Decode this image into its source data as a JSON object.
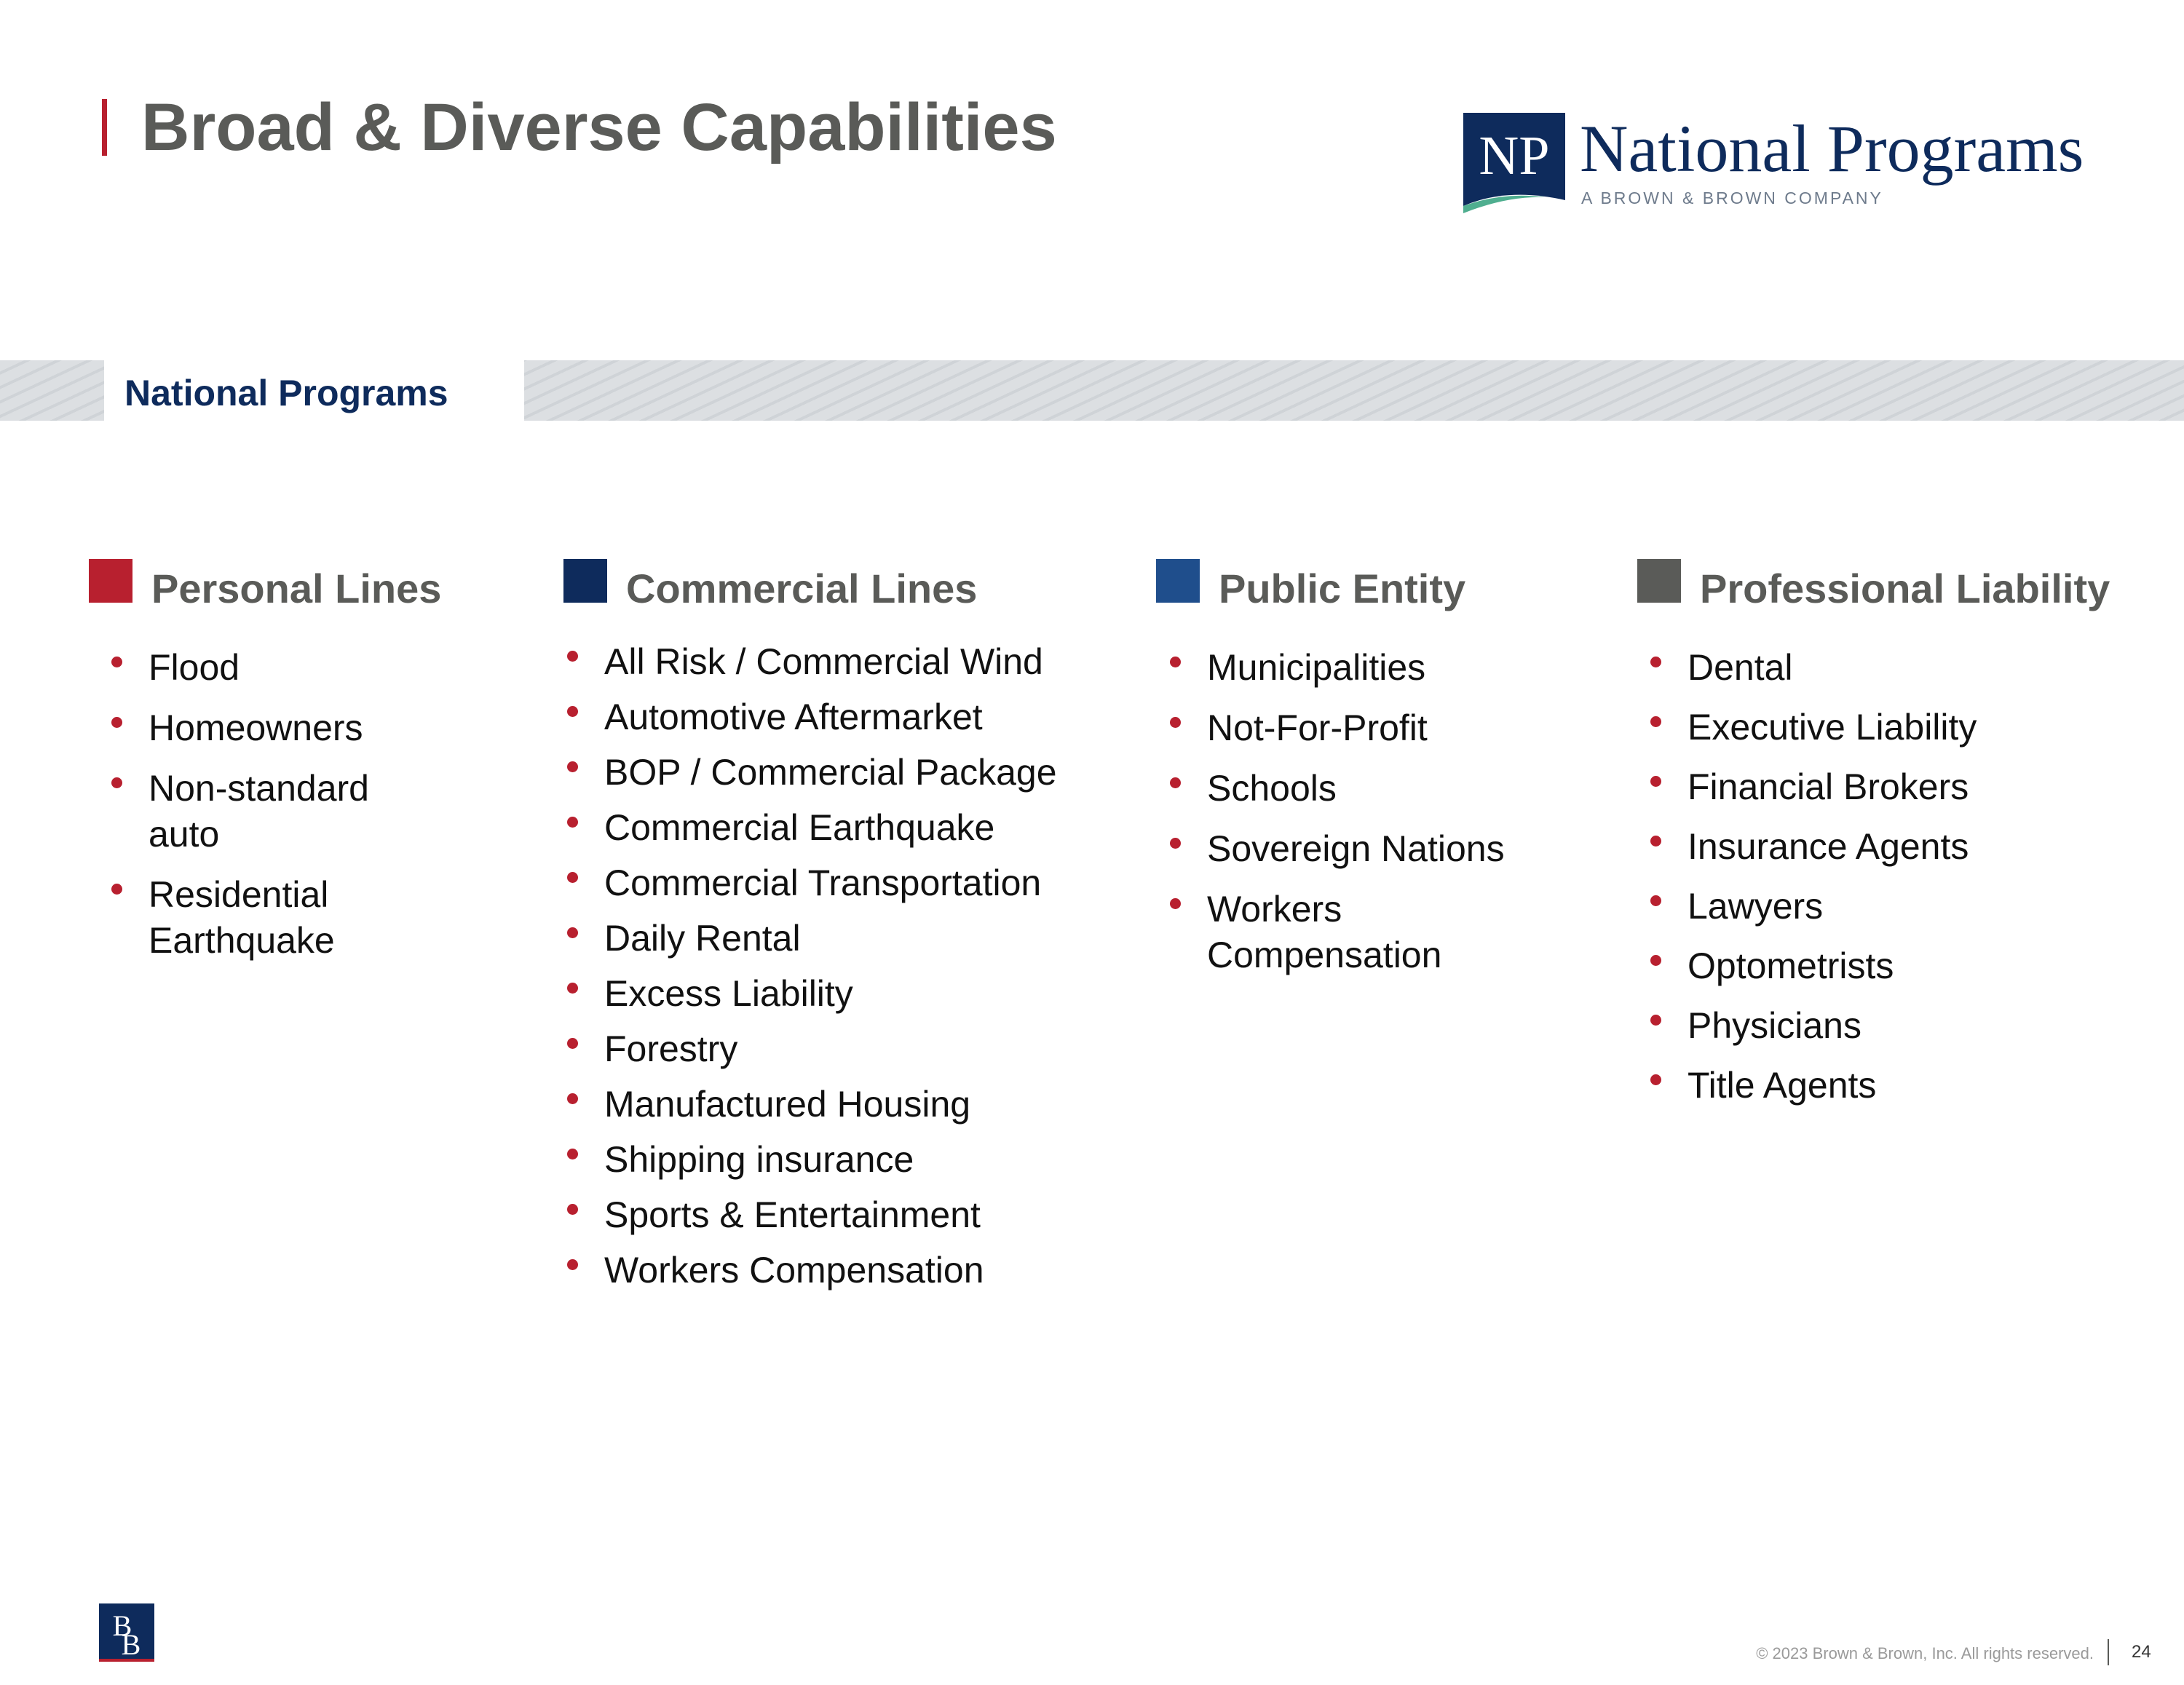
{
  "header": {
    "title": "Broad & Diverse Capabilities"
  },
  "logo": {
    "mark_text": "NP",
    "name": "National Programs",
    "tagline": "A BROWN & BROWN COMPANY"
  },
  "band": {
    "label": "National Programs"
  },
  "columns": [
    {
      "title": "Personal Lines",
      "color": "#b8202f",
      "items": [
        "Flood",
        "Homeowners",
        "Non-standard auto",
        "Residential Earthquake"
      ]
    },
    {
      "title": "Commercial Lines",
      "color": "#0e2b5c",
      "items": [
        "All Risk / Commercial Wind",
        "Automotive Aftermarket",
        "BOP / Commercial Package",
        "Commercial Earthquake",
        "Commercial Transportation",
        "Daily Rental",
        "Excess Liability",
        "Forestry",
        "Manufactured Housing",
        "Shipping insurance",
        "Sports & Entertainment",
        "Workers Compensation"
      ]
    },
    {
      "title": "Public Entity",
      "color": "#1f4e8c",
      "items": [
        "Municipalities",
        "Not-For-Profit",
        "Schools",
        "Sovereign Nations",
        "Workers Compensation"
      ]
    },
    {
      "title": "Professional Liability",
      "color": "#5a5b58",
      "items": [
        "Dental",
        "Executive Liability",
        "Financial Brokers",
        "Insurance Agents",
        "Lawyers",
        "Optometrists",
        "Physicians",
        "Title Agents"
      ]
    }
  ],
  "footer": {
    "logo_text": "BB",
    "copyright": "© 2023 Brown & Brown, Inc. All rights reserved.",
    "page_number": "24"
  }
}
